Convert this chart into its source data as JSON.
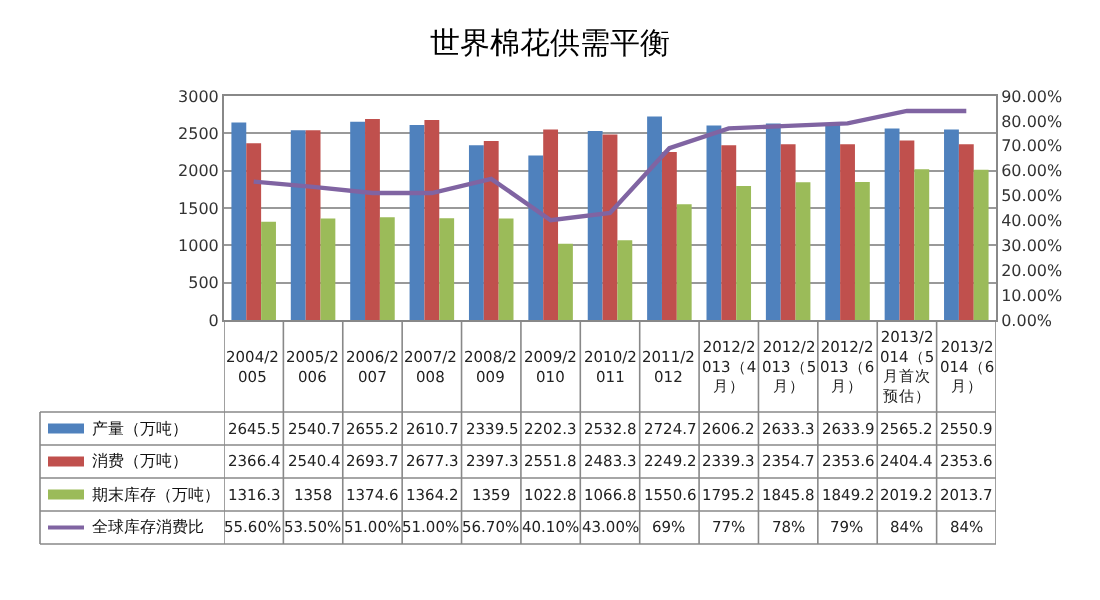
{
  "chart_data": {
    "type": "bar",
    "title": "世界棉花供需平衡",
    "categories": [
      "2004/2005",
      "2005/2006",
      "2006/2007",
      "2007/2008",
      "2008/2009",
      "2009/2010",
      "2010/2011",
      "2011/2012",
      "2012/2013（4月）",
      "2012/2013（5月）",
      "2012/2013（6月）",
      "2013/2014（5月首次预估）",
      "2013/2014（6月）"
    ],
    "series": [
      {
        "name": "产量（万吨）",
        "color": "#4f81bd",
        "values": [
          2645.5,
          2540.7,
          2655.2,
          2610.7,
          2339.5,
          2202.3,
          2532.8,
          2724.7,
          2606.2,
          2633.3,
          2633.9,
          2565.2,
          2550.9
        ]
      },
      {
        "name": "消费（万吨）",
        "color": "#c0504d",
        "values": [
          2366.4,
          2540.4,
          2693.7,
          2677.3,
          2397.3,
          2551.8,
          2483.3,
          2249.2,
          2339.3,
          2354.7,
          2353.6,
          2404.4,
          2353.6
        ]
      },
      {
        "name": "期末库存（万吨）",
        "color": "#9bbb59",
        "values": [
          1316.3,
          1358,
          1374.6,
          1364.2,
          1359,
          1022.8,
          1066.8,
          1550.6,
          1795.2,
          1845.8,
          1849.2,
          2019.2,
          2013.7
        ]
      },
      {
        "name": "全球库存消费比",
        "color": "#8064a2",
        "type": "line",
        "axis": "y2",
        "marker": "none",
        "values": [
          55.6,
          53.5,
          51,
          51,
          56.7,
          40.1,
          43,
          69,
          77,
          78,
          79,
          84,
          84
        ],
        "value_labels": [
          "55.60%",
          "53.50%",
          "51.00%",
          "51.00%",
          "56.70%",
          "40.10%",
          "43.00%",
          "69%",
          "77%",
          "78%",
          "79%",
          "84%",
          "84%"
        ]
      }
    ],
    "ylim": [
      0,
      3000
    ],
    "yticks": [
      0,
      500,
      1000,
      1500,
      2000,
      2500,
      3000
    ],
    "y2lim": [
      0,
      90
    ],
    "y2ticks": [
      {
        "value": 0,
        "label": "0.00%"
      },
      {
        "value": 10,
        "label": "10.00%"
      },
      {
        "value": 20,
        "label": "20.00%"
      },
      {
        "value": 30,
        "label": "30.00%"
      },
      {
        "value": 40,
        "label": "40.00%"
      },
      {
        "value": 50,
        "label": "50.00%"
      },
      {
        "value": 60,
        "label": "60.00%"
      },
      {
        "value": 70,
        "label": "70.00%"
      },
      {
        "value": 80,
        "label": "80.00%"
      },
      {
        "value": 90,
        "label": "90.00%"
      }
    ],
    "grid": "y",
    "legend": "bottom",
    "data_labels": true
  }
}
